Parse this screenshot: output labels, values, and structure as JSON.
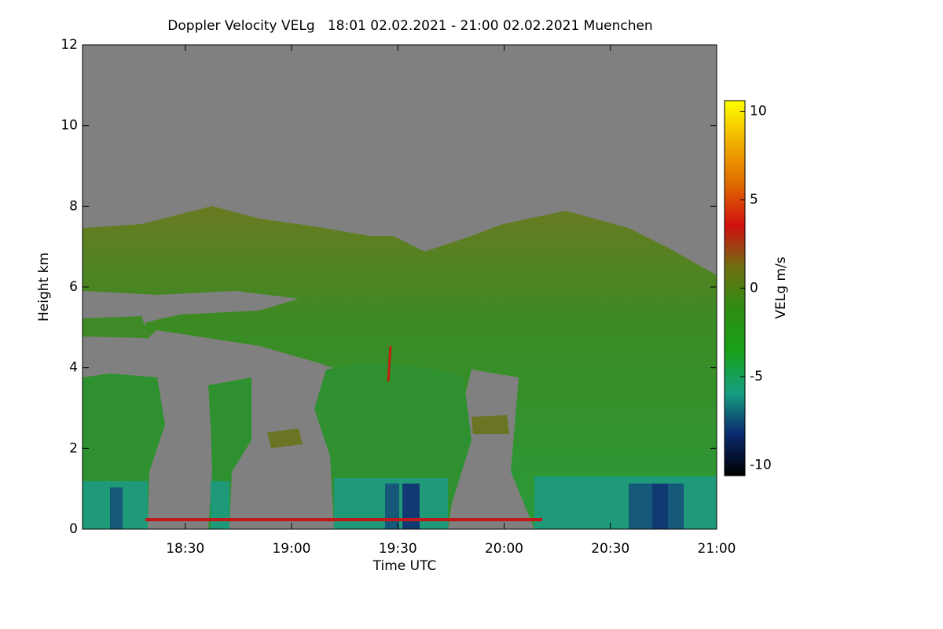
{
  "chart_data": {
    "type": "heatmap",
    "title": "Doppler Velocity VELg   18:01 02.02.2021 - 21:00 02.02.2021 Muenchen",
    "x_label": "Time UTC",
    "y_label": "Height km",
    "colorbar_label": "VELg m/s",
    "xlim": [
      1081,
      1260
    ],
    "xticks": [
      {
        "value": 1110,
        "label": "18:30"
      },
      {
        "value": 1140,
        "label": "19:00"
      },
      {
        "value": 1170,
        "label": "19:30"
      },
      {
        "value": 1200,
        "label": "20:00"
      },
      {
        "value": 1230,
        "label": "20:30"
      },
      {
        "value": 1260,
        "label": "21:00"
      }
    ],
    "ylim": [
      0,
      12
    ],
    "yticks": [
      0,
      2,
      4,
      6,
      8,
      10,
      12
    ],
    "clim": [
      -10.6,
      10.6
    ],
    "cticks": [
      -10,
      -5,
      0,
      5,
      10
    ],
    "colormap": [
      "#000000",
      "#0a2a6e",
      "#15a080",
      "#18a018",
      "#2e8e12",
      "#6e7012",
      "#d01010",
      "#e06a00",
      "#f0b000",
      "#ffff00"
    ]
  }
}
